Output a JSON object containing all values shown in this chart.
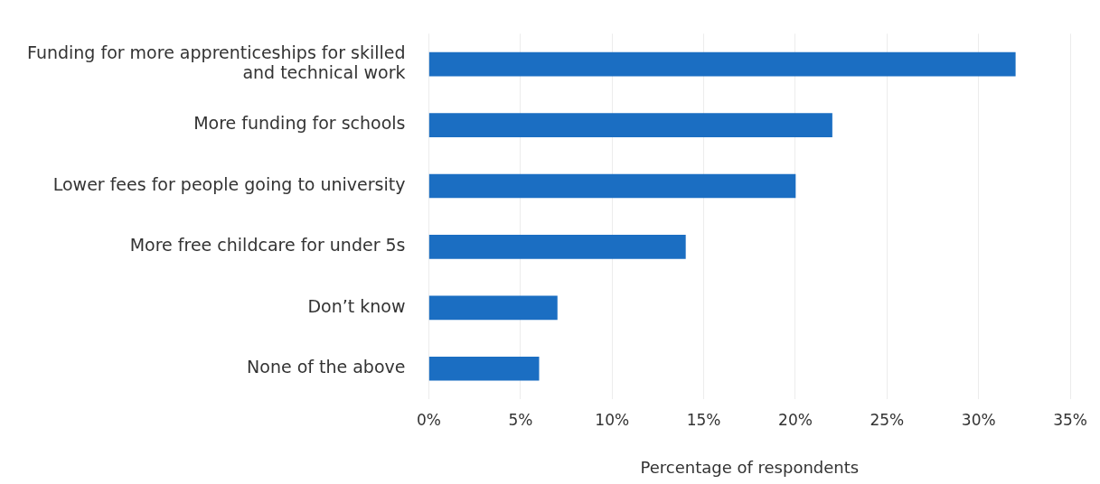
{
  "chart_data": {
    "type": "bar",
    "orientation": "horizontal",
    "xlabel": "Percentage of respondents",
    "categories": [
      "Funding for more apprenticeships for skilled and technical work",
      "More funding for schools",
      "Lower fees for people going to university",
      "More free childcare for under 5s",
      "Don’t know",
      "None of the above"
    ],
    "values": [
      32,
      22,
      20,
      14,
      7,
      6
    ],
    "color": "#1b6ec2",
    "xlim": [
      0,
      35
    ],
    "xticks": [
      {
        "value": 0,
        "label": "0%"
      },
      {
        "value": 5,
        "label": "5%"
      },
      {
        "value": 10,
        "label": "10%"
      },
      {
        "value": 15,
        "label": "15%"
      },
      {
        "value": 20,
        "label": "20%"
      },
      {
        "value": 25,
        "label": "25%"
      },
      {
        "value": 30,
        "label": "30%"
      },
      {
        "value": 35,
        "label": "35%"
      }
    ],
    "grid": "x",
    "legend": false
  }
}
